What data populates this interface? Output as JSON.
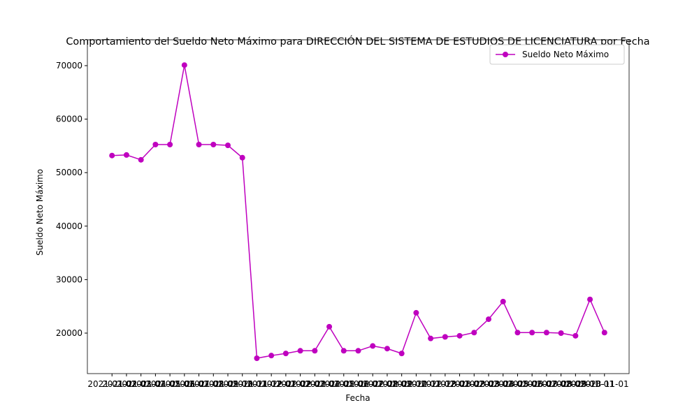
{
  "chart_data": {
    "type": "line",
    "title": "Comportamiento del Sueldo Neto Máximo para DIRECCIÓN DEL SISTEMA DE ESTUDIOS DE LICENCIATURA por Fecha",
    "xlabel": "Fecha",
    "ylabel": "Sueldo Neto Máximo",
    "categories": [
      "2021-01-01",
      "2021-02-01",
      "2021-03-01",
      "2021-04-01",
      "2021-05-01",
      "2021-06-01",
      "2021-07-01",
      "2021-08-01",
      "2021-09-01",
      "2021-10-01",
      "2021-11-01",
      "2021-12-01",
      "2022-01-01",
      "2022-02-01",
      "2022-03-01",
      "2022-04-01",
      "2022-05-01",
      "2022-06-01",
      "2022-07-01",
      "2022-08-01",
      "2022-09-01",
      "2022-10-01",
      "2022-11-01",
      "2022-12-01",
      "2023-01-01",
      "2023-02-01",
      "2023-03-01",
      "2023-04-01",
      "2023-05-01",
      "2023-06-01",
      "2023-07-01",
      "2023-08-01",
      "2023-09-01",
      "2023-10-01",
      "2023-11-01"
    ],
    "series": [
      {
        "name": "Sueldo Neto Máximo",
        "color": "#bf00bf",
        "values": [
          53200,
          53300,
          52400,
          55250,
          55250,
          70100,
          55250,
          55250,
          55100,
          52800,
          15300,
          15800,
          16200,
          16700,
          16700,
          21200,
          16700,
          16700,
          17600,
          17100,
          16200,
          23800,
          19000,
          19300,
          19500,
          20100,
          22600,
          25900,
          20100,
          20100,
          20100,
          20000,
          19500,
          26300,
          20100
        ]
      }
    ],
    "ylim": [
      12430,
      74830
    ],
    "yticks": [
      20000,
      30000,
      40000,
      50000,
      60000,
      70000
    ],
    "legend": "upper right"
  }
}
